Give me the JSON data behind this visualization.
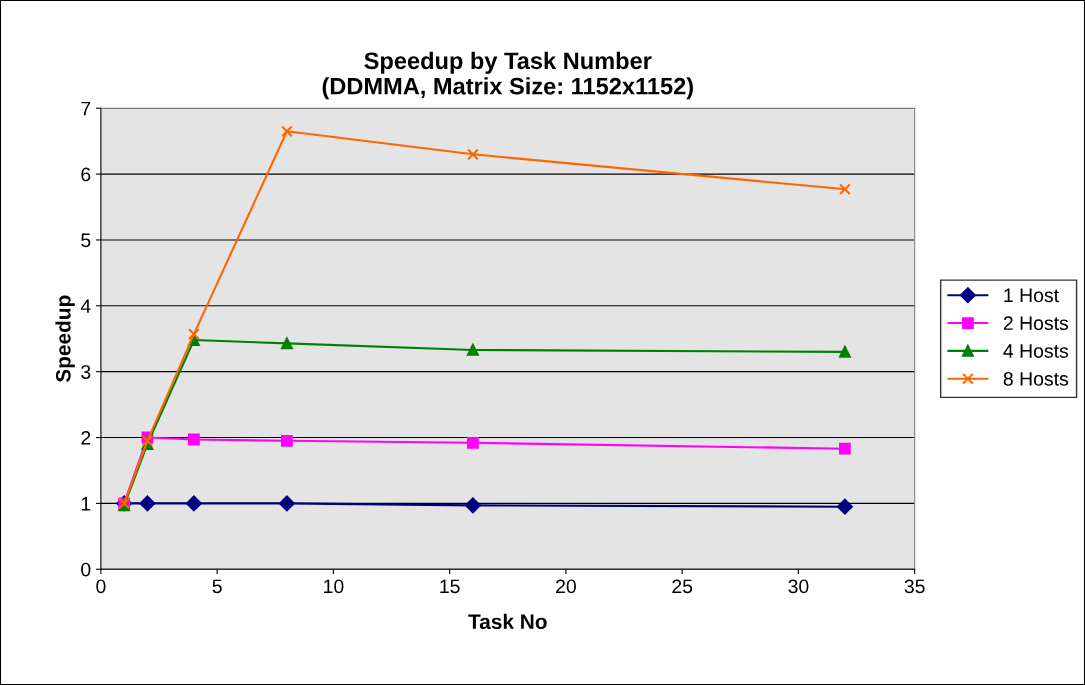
{
  "chart_data": {
    "type": "line",
    "title": "Speedup by Task Number\n(DDMMA, Matrix Size: 1152x1152)",
    "xlabel": "Task No",
    "ylabel": "Speedup",
    "x": [
      1,
      2,
      4,
      8,
      16,
      32
    ],
    "series": [
      {
        "name": "1 Host",
        "color": "#000080",
        "marker": "diamond",
        "values": [
          1,
          1,
          1,
          1,
          0.97,
          0.95
        ]
      },
      {
        "name": "2 Hosts",
        "color": "#ff00ff",
        "marker": "square",
        "values": [
          1,
          2.0,
          1.97,
          1.95,
          1.92,
          1.83
        ]
      },
      {
        "name": "4 Hosts",
        "color": "#008000",
        "marker": "triangle",
        "values": [
          0.97,
          1.9,
          3.48,
          3.43,
          3.33,
          3.3
        ]
      },
      {
        "name": "8 Hosts",
        "color": "#ff6600",
        "marker": "cross",
        "values": [
          1,
          1.95,
          3.57,
          6.65,
          6.3,
          5.77
        ]
      }
    ],
    "xlim": [
      0,
      35
    ],
    "xticks": [
      0,
      5,
      10,
      15,
      20,
      25,
      30,
      35
    ],
    "ylim": [
      0,
      7
    ],
    "yticks": [
      0,
      1,
      2,
      3,
      4,
      5,
      6,
      7
    ],
    "grid": "y",
    "legend": "right",
    "line_style": "solid"
  }
}
